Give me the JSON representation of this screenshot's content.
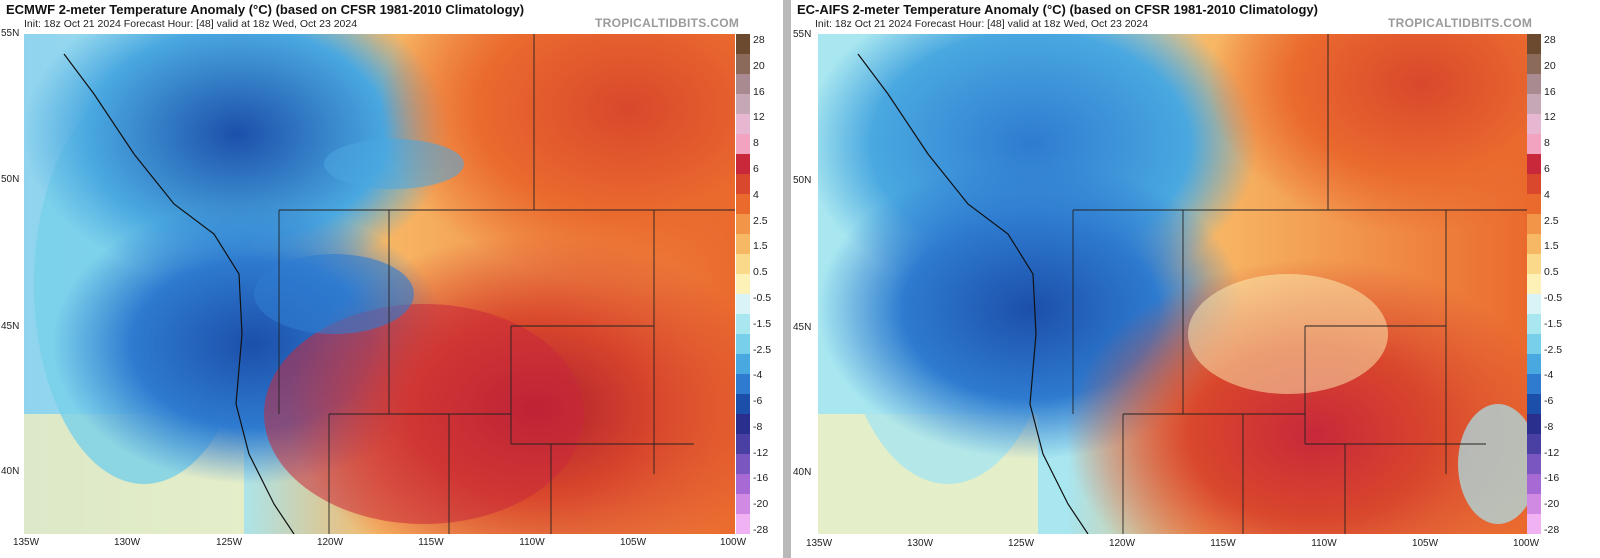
{
  "panels": [
    {
      "title": "ECMWF 2-meter Temperature Anomaly (°C) (based on CFSR 1981-2010 Climatology)",
      "subtitle": "Init: 18z Oct 21 2024   Forecast Hour: [48]   valid at 18z Wed, Oct 23 2024",
      "site": "TROPICALTIDBITS.COM"
    },
    {
      "title": "EC-AIFS 2-meter Temperature Anomaly (°C) (based on CFSR 1981-2010 Climatology)",
      "subtitle": "Init: 18z Oct 21 2024   Forecast Hour: [48]   valid at 18z Wed, Oct 23 2024",
      "site": "TROPICALTIDBITS.COM"
    }
  ],
  "axes": {
    "lat_labels": [
      "55N",
      "50N",
      "45N",
      "40N"
    ],
    "lon_labels": [
      "135W",
      "130W",
      "125W",
      "120W",
      "115W",
      "110W",
      "105W",
      "100W"
    ]
  },
  "colorbar": {
    "labels": [
      "28",
      "20",
      "16",
      "12",
      "8",
      "6",
      "4",
      "2.5",
      "1.5",
      "0.5",
      "-0.5",
      "-1.5",
      "-2.5",
      "-4",
      "-6",
      "-8",
      "-12",
      "-16",
      "-20",
      "-28"
    ],
    "colors": [
      "#6b4a30",
      "#8c6a5a",
      "#a88a90",
      "#c6a7b5",
      "#e7b6d1",
      "#f2a3bf",
      "#c8283a",
      "#d9472c",
      "#ea6a2e",
      "#f39548",
      "#f7b866",
      "#fbd98a",
      "#fdf1b8",
      "#d8f4f6",
      "#a8e6f0",
      "#77cfea",
      "#4aa8e0",
      "#2e7bd0",
      "#1c4faa",
      "#2a2e8c",
      "#4a3fa3",
      "#7a56c0",
      "#a76ad4",
      "#d18ae4",
      "#f0b2f2"
    ]
  }
}
